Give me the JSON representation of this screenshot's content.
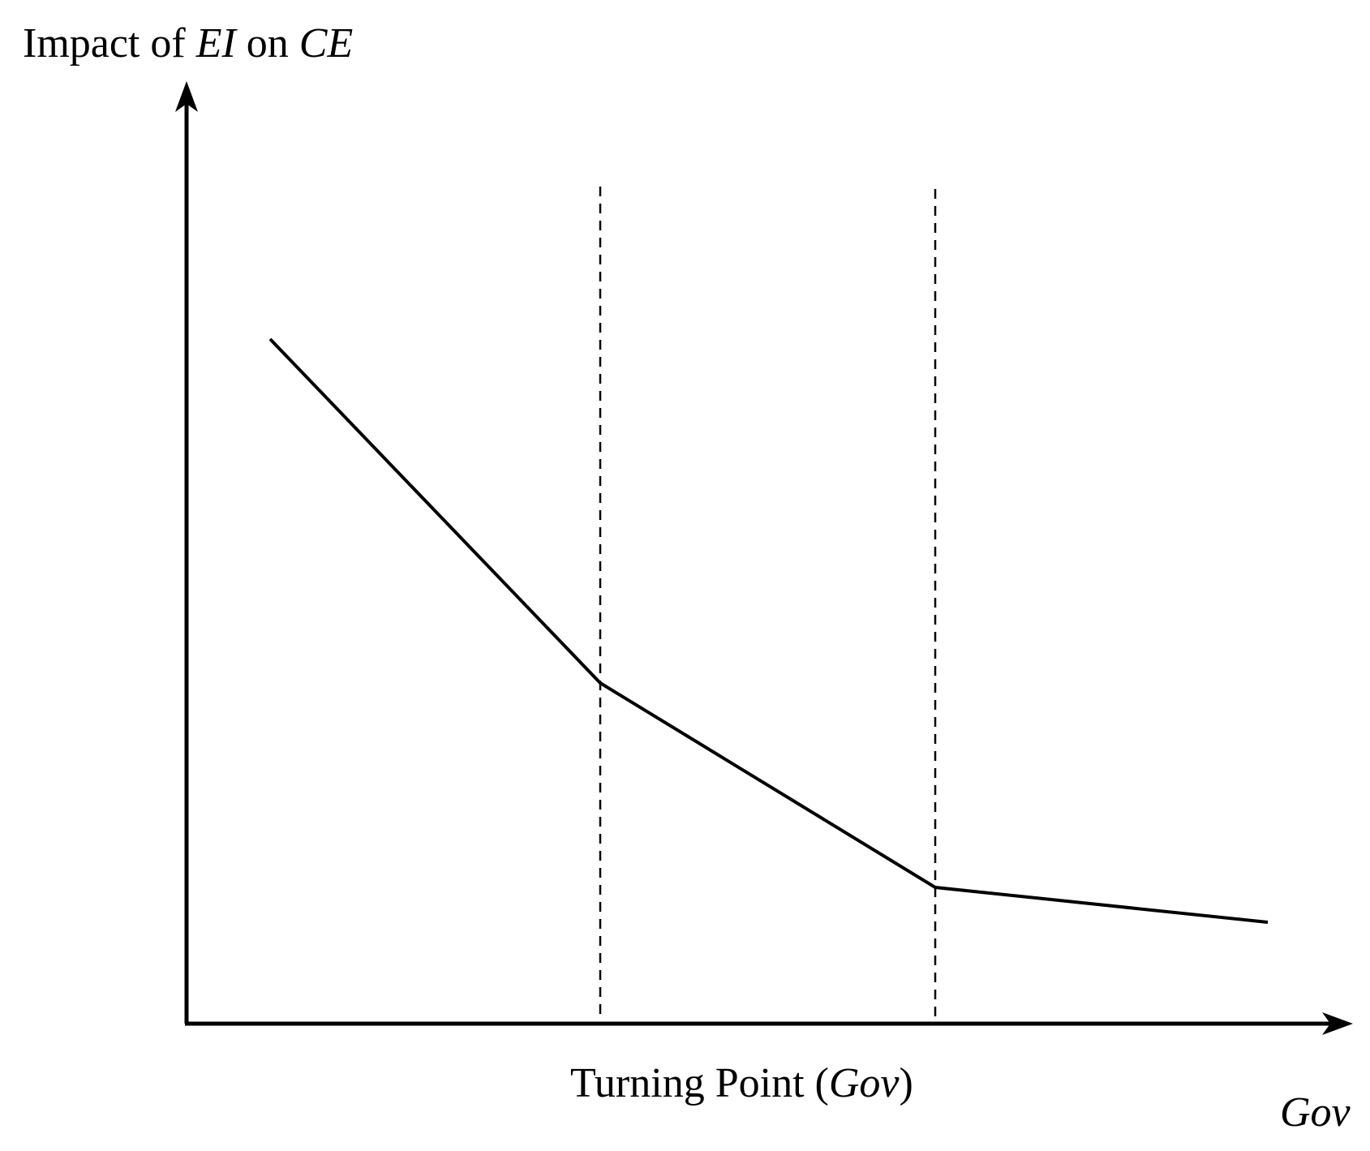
{
  "diagram": {
    "y_axis_label": {
      "prefix": "Impact of ",
      "var1": "EI",
      "middle": " on ",
      "var2": "CE"
    },
    "x_axis_label": "Gov",
    "turning_point_label": {
      "prefix": "Turning Point (",
      "var": "Gov",
      "suffix": ")"
    },
    "threshold_count": 2,
    "curve_segments": 3,
    "trend": "decreasing, flattening after each turning point"
  }
}
